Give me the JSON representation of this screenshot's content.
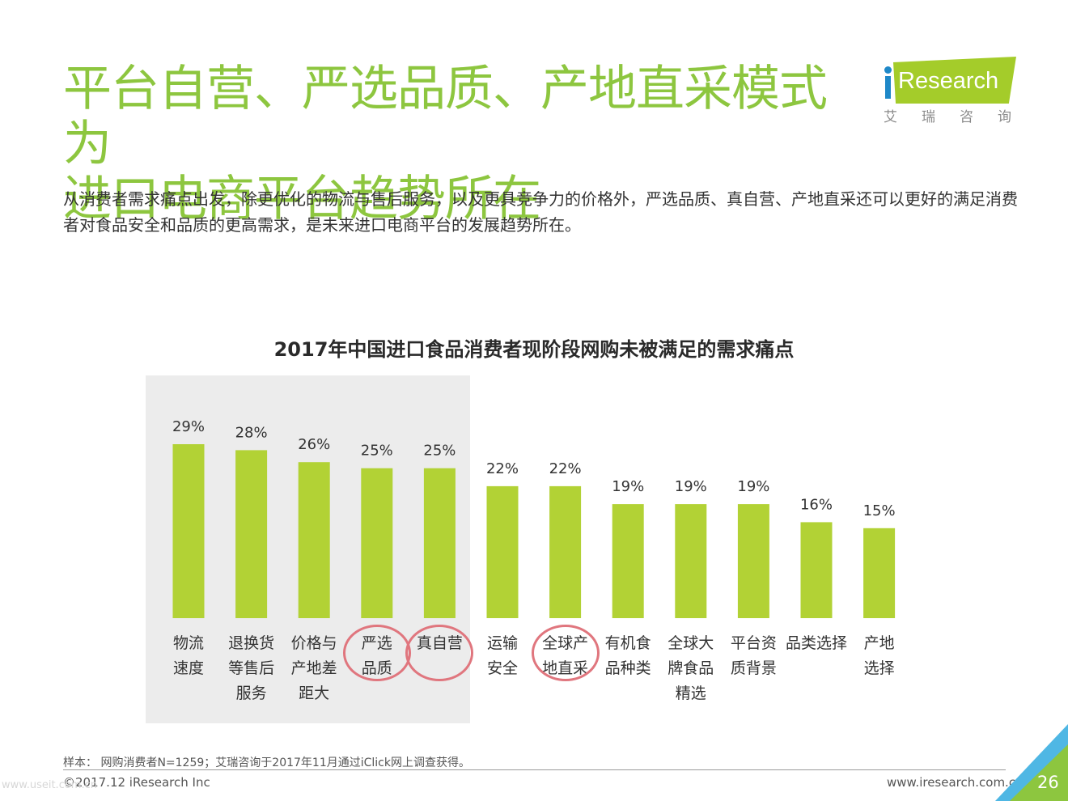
{
  "page": {
    "title_line1": "平台自营、严选品质、产地直采模式为",
    "title_line2": "进口电商平台趋势所在",
    "subtitle": "从消费者需求痛点出发，除更优化的物流与售后服务，以及更具竞争力的价格外，严选品质、真自营、产地直采还可以更好的满足消费者对食品安全和品质的更高需求，是未来进口电商平台的发展趋势所在。",
    "footnote": "样本： 网购消费者N=1259；艾瑞咨询于2017年11月通过iClick网上调查获得。",
    "copyright": "©2017.12 iResearch Inc",
    "site": "www.iresearch.com.cn",
    "page_number": "26",
    "watermark": "www.useit.com.cn"
  },
  "logo": {
    "brand": "iResearch",
    "brand_text": "Research",
    "cn": "艾瑞咨询"
  },
  "colors": {
    "title": "#8dc63f",
    "bar": "#b2d235",
    "highlight_box": "#ececec",
    "circle": "#e0767e",
    "corner_blue": "#4fb7e4",
    "corner_green": "#8dc63f"
  },
  "chart_data": {
    "type": "bar",
    "title": "2017年中国进口食品消费者现阶段网购未被满足的需求痛点",
    "categories": [
      [
        "物流",
        "速度"
      ],
      [
        "退换货",
        "等售后",
        "服务"
      ],
      [
        "价格与",
        "产地差",
        "距大"
      ],
      [
        "严选",
        "品质"
      ],
      [
        "真自营"
      ],
      [
        "运输",
        "安全"
      ],
      [
        "全球产",
        "地直采"
      ],
      [
        "有机食",
        "品种类"
      ],
      [
        "全球大",
        "牌食品",
        "精选"
      ],
      [
        "平台资",
        "质背景"
      ],
      [
        "品类选择"
      ],
      [
        "产地",
        "选择"
      ]
    ],
    "values": [
      29,
      28,
      26,
      25,
      25,
      22,
      22,
      19,
      19,
      19,
      16,
      15
    ],
    "value_labels": [
      "29%",
      "28%",
      "26%",
      "25%",
      "25%",
      "22%",
      "22%",
      "19%",
      "19%",
      "19%",
      "16%",
      "15%"
    ],
    "ylim": [
      0,
      29
    ],
    "highlighted_categories": [
      0,
      1,
      2,
      3,
      4
    ],
    "circled_categories": [
      3,
      4,
      6
    ]
  }
}
